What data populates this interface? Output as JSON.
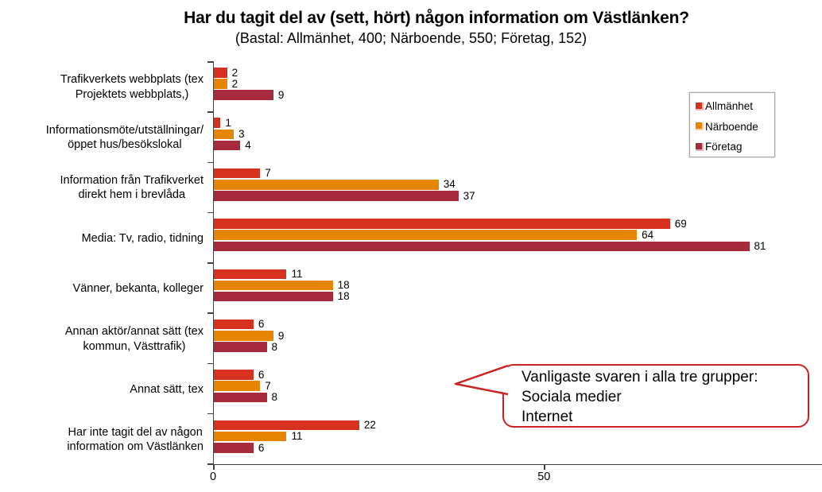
{
  "chart": {
    "title": "Har du tagit del av (sett, hört) någon information om Västlänken?",
    "subtitle": "(Bastal: Allmänhet, 400; Närboende, 550; Företag, 152)"
  },
  "callout": {
    "text": "Vanligaste svaren i alla tre grupper:\nSociala medier\nInternet"
  },
  "chart_data": {
    "type": "bar",
    "orientation": "horizontal",
    "title": "Har du tagit del av (sett, hört) någon information om Västlänken?",
    "subtitle": "(Bastal: Allmänhet, 400; Närboende, 550; Företag, 152)",
    "categories": [
      "Trafikverkets webbplats (tex\nProjektets webbplats,)",
      "Informationsmöte/utställningar/\nöppet hus/besökslokal",
      "Information från Trafikverket\ndirekt hem i brevlåda",
      "Media: Tv, radio, tidning",
      "Vänner, bekanta, kolleger",
      "Annan aktör/annat sätt (tex\nkommun, Västtrafik)",
      "Annat sätt, tex",
      "Har inte tagit del av någon\ninformation om Västlänken"
    ],
    "series": [
      {
        "name": "Allmänhet",
        "key": "allmanhet",
        "color": "#D6311E",
        "values": [
          2,
          1,
          7,
          69,
          11,
          6,
          6,
          22
        ]
      },
      {
        "name": "Närboende",
        "key": "narboende",
        "color": "#E88500",
        "values": [
          2,
          3,
          34,
          64,
          18,
          9,
          7,
          11
        ]
      },
      {
        "name": "Företag",
        "key": "foretag",
        "color": "#A62A3C",
        "values": [
          9,
          4,
          37,
          81,
          18,
          8,
          8,
          6
        ]
      }
    ],
    "xlim": [
      0,
      92
    ],
    "x_ticks": [
      0,
      50
    ],
    "legend_position": "top-right",
    "grid": false
  },
  "colors": {
    "axis": "#404040",
    "callout_border": "#CC2222",
    "legend_border": "#A6A6A6"
  }
}
